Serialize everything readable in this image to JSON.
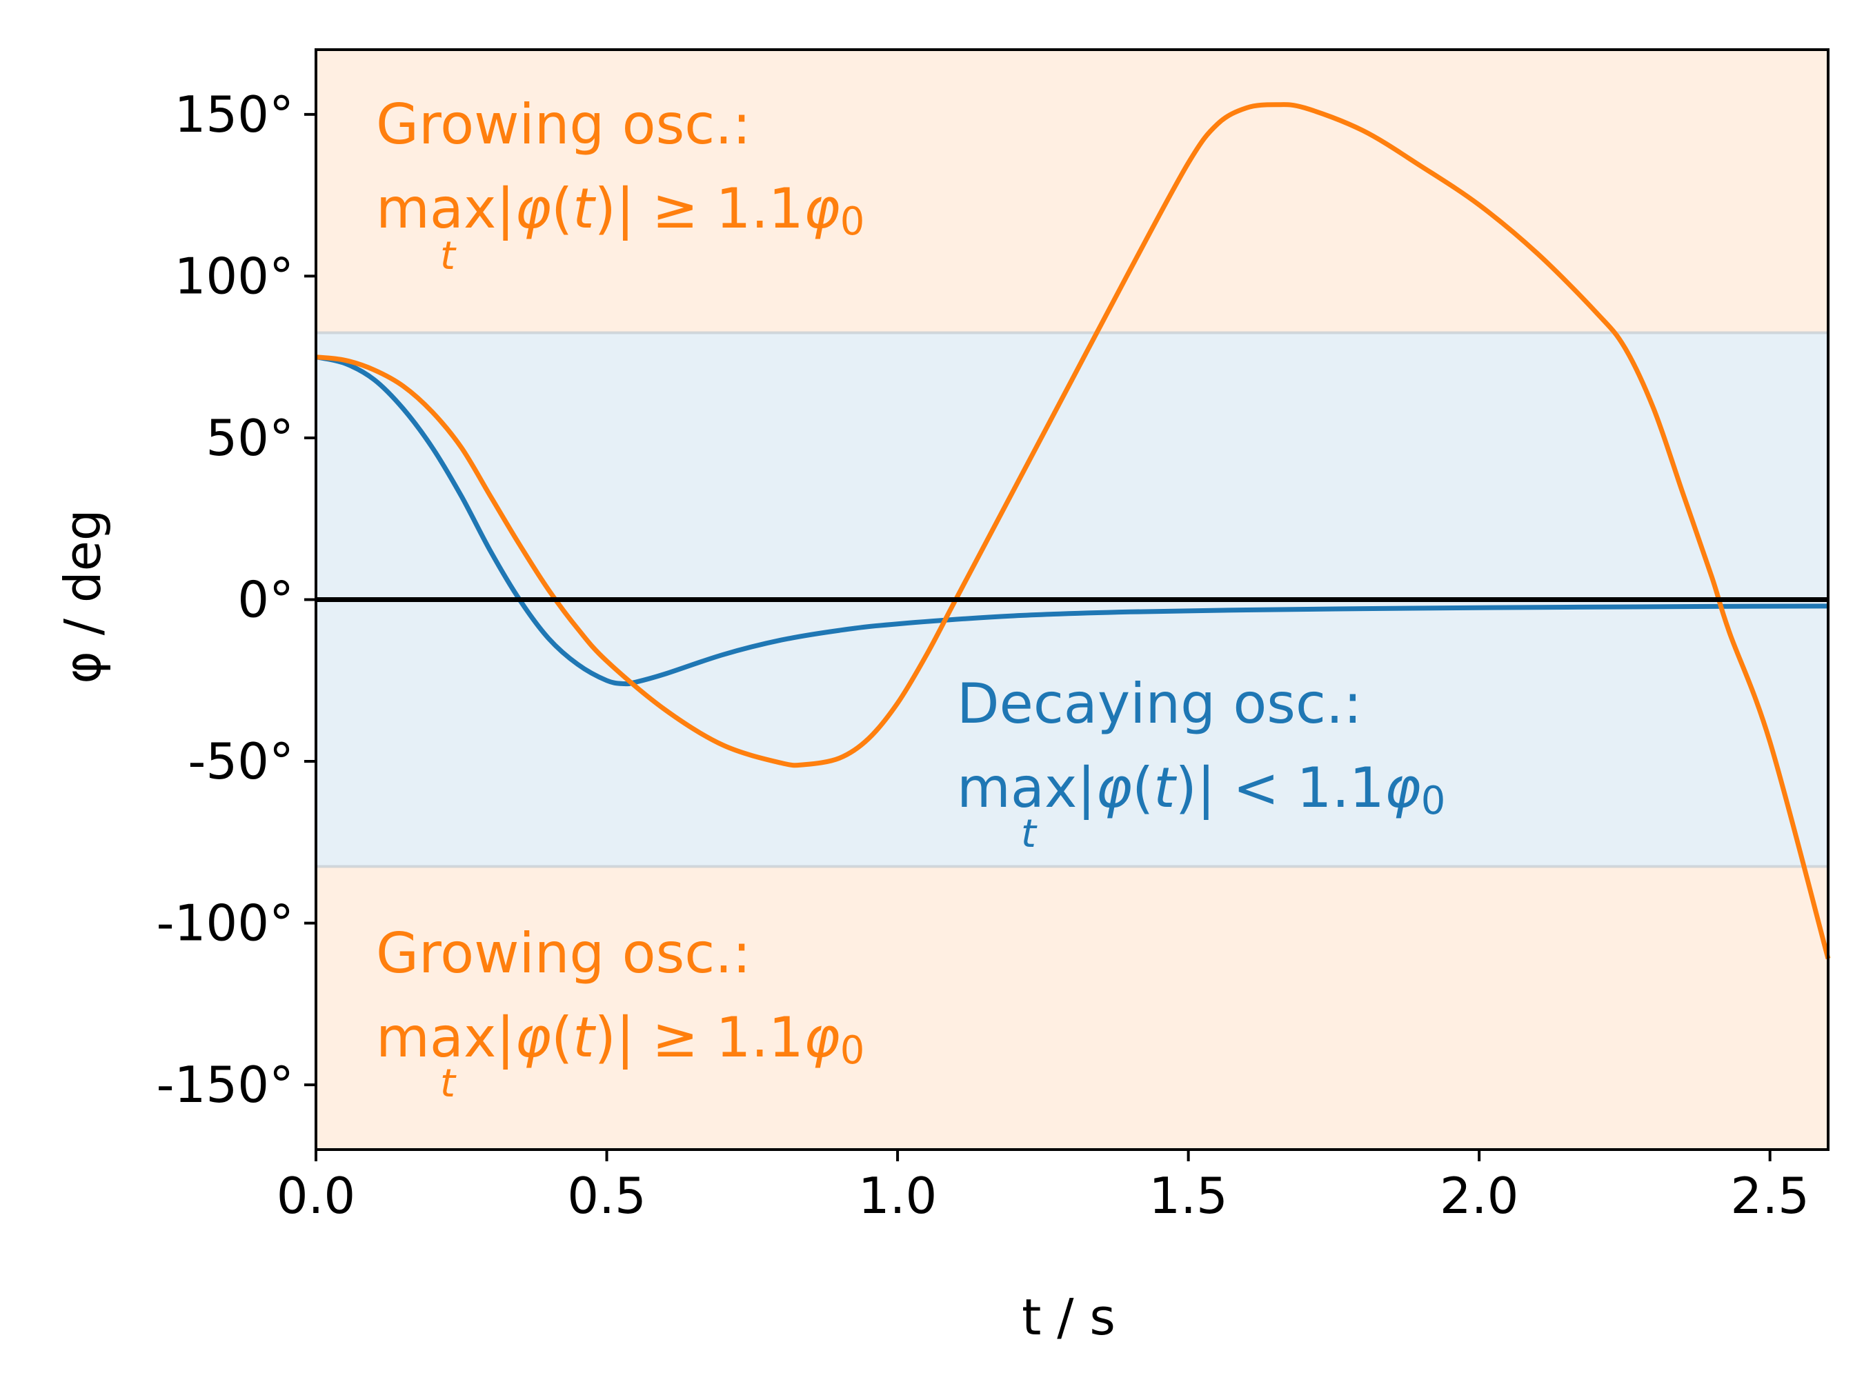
{
  "chart_data": {
    "type": "line",
    "title": "",
    "xlabel": "t / s",
    "ylabel": "φ / deg",
    "xlim": [
      0,
      2.6
    ],
    "ylim": [
      -170,
      170
    ],
    "grid": false,
    "x_ticks": [
      {
        "value": 0.0,
        "label": "0.0"
      },
      {
        "value": 0.5,
        "label": "0.5"
      },
      {
        "value": 1.0,
        "label": "1.0"
      },
      {
        "value": 1.5,
        "label": "1.5"
      },
      {
        "value": 2.0,
        "label": "2.0"
      },
      {
        "value": 2.5,
        "label": "2.5"
      }
    ],
    "y_ticks": [
      {
        "value": 150,
        "label": "150°"
      },
      {
        "value": 100,
        "label": "100°"
      },
      {
        "value": 50,
        "label": "50°"
      },
      {
        "value": 0,
        "label": "0°"
      },
      {
        "value": -50,
        "label": "-50°"
      },
      {
        "value": -100,
        "label": "-100°"
      },
      {
        "value": -150,
        "label": "-150°"
      }
    ],
    "bands": [
      {
        "name": "growing-upper",
        "y_from": 82.5,
        "y_to": 170,
        "color": "#ff7f0e",
        "alpha": 0.12
      },
      {
        "name": "decaying",
        "y_from": -82.5,
        "y_to": 82.5,
        "color": "#1f77b4",
        "alpha": 0.11
      },
      {
        "name": "growing-lower",
        "y_from": -170,
        "y_to": -82.5,
        "color": "#ff7f0e",
        "alpha": 0.12
      }
    ],
    "reference_line": {
      "y": 0,
      "color": "#000000"
    },
    "series": [
      {
        "color": "#1f77b4",
        "x": [
          0,
          0.05,
          0.1,
          0.15,
          0.2,
          0.25,
          0.3,
          0.35,
          0.4,
          0.45,
          0.5,
          0.53,
          0.55,
          0.6,
          0.7,
          0.8,
          0.9,
          1.0,
          1.2,
          1.4,
          1.6,
          1.8,
          2.0,
          2.2,
          2.4,
          2.6
        ],
        "y": [
          75,
          73,
          68,
          59,
          47,
          32,
          15,
          0,
          -12,
          -20,
          -25,
          -26,
          -25.5,
          -23,
          -17,
          -12.5,
          -9.5,
          -7.5,
          -5,
          -3.8,
          -3.2,
          -2.8,
          -2.5,
          -2.3,
          -2.1,
          -2
        ]
      },
      {
        "color": "#ff7f0e",
        "x": [
          0,
          0.05,
          0.1,
          0.15,
          0.2,
          0.25,
          0.3,
          0.35,
          0.4,
          0.45,
          0.5,
          0.6,
          0.7,
          0.8,
          0.84,
          0.9,
          0.95,
          1.0,
          1.05,
          1.1,
          1.2,
          1.3,
          1.4,
          1.5,
          1.55,
          1.6,
          1.65,
          1.7,
          1.8,
          1.9,
          2.0,
          2.1,
          2.2,
          2.25,
          2.3,
          2.35,
          2.4,
          2.43,
          2.5,
          2.6
        ],
        "y": [
          75,
          74,
          71,
          66,
          58,
          47,
          32,
          17,
          3,
          -9,
          -19,
          -34,
          -45,
          -50.5,
          -51,
          -49,
          -43,
          -32,
          -17,
          0,
          34,
          68,
          102,
          135,
          147,
          152,
          153,
          152,
          145,
          134,
          122,
          107,
          89,
          78,
          59,
          33,
          7,
          -10,
          -44,
          -111
        ]
      }
    ],
    "annotations": [
      {
        "name": "upper-growing",
        "color": "#ff7f0e",
        "line1": "Growing osc.:",
        "line2_max": "max",
        "line2_sub": "t",
        "line2_a": "|",
        "line2_phi": "φ",
        "line2_b": "(",
        "line2_t": "t",
        "line2_c": ")| ≥ 1.1",
        "line2_phi0": "φ",
        "line2_zero": "0"
      },
      {
        "name": "decaying",
        "color": "#1f77b4",
        "line1": "Decaying osc.:",
        "line2_max": "max",
        "line2_sub": "t",
        "line2_a": "|",
        "line2_phi": "φ",
        "line2_b": "(",
        "line2_t": "t",
        "line2_c": ")| < 1.1",
        "line2_phi0": "φ",
        "line2_zero": "0"
      },
      {
        "name": "lower-growing",
        "color": "#ff7f0e",
        "line1": "Growing osc.:",
        "line2_max": "max",
        "line2_sub": "t",
        "line2_a": "|",
        "line2_phi": "φ",
        "line2_b": "(",
        "line2_t": "t",
        "line2_c": ")| ≥ 1.1",
        "line2_phi0": "φ",
        "line2_zero": "0"
      }
    ]
  }
}
